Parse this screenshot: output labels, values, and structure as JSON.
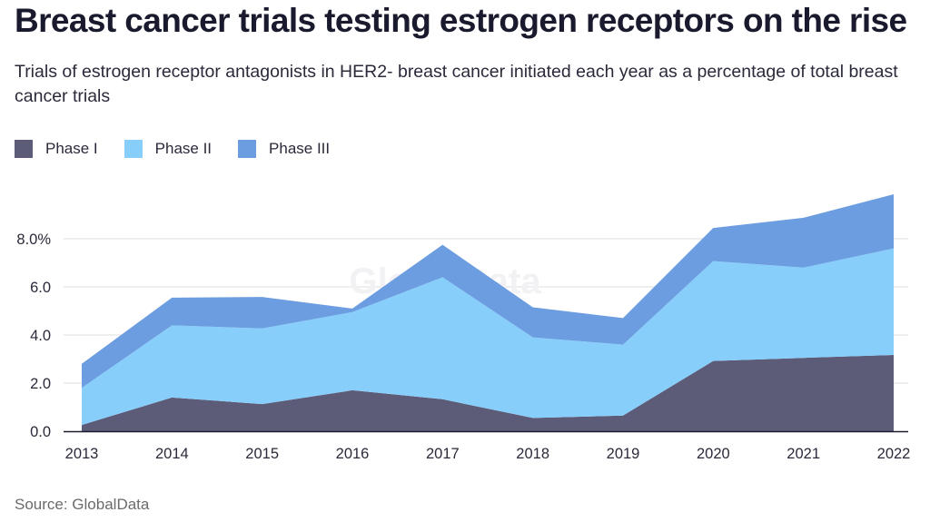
{
  "header": {
    "title": "Breast cancer trials testing estrogen receptors on the rise",
    "subtitle": "Trials of estrogen receptor antagonists in HER2- breast cancer initiated each year as a percentage of total breast cancer trials"
  },
  "footer": {
    "source": "Source: GlobalData"
  },
  "watermark": "GlobalData",
  "chart_data": {
    "type": "area",
    "stacked": true,
    "title": "Breast cancer trials testing estrogen receptors on the rise",
    "subtitle": "Trials of estrogen receptor antagonists in HER2- breast cancer initiated each year as a percentage of total breast cancer trials",
    "xlabel": "",
    "ylabel": "",
    "categories": [
      "2013",
      "2014",
      "2015",
      "2016",
      "2017",
      "2018",
      "2019",
      "2020",
      "2021",
      "2022"
    ],
    "series": [
      {
        "name": "Phase I",
        "color": "#5c5b78",
        "values": [
          0.26,
          1.4,
          1.13,
          1.7,
          1.33,
          0.55,
          0.65,
          2.92,
          3.05,
          3.17
        ]
      },
      {
        "name": "Phase II",
        "color": "#87cefa",
        "values": [
          1.54,
          3.0,
          3.14,
          3.25,
          5.07,
          3.35,
          2.95,
          4.15,
          3.75,
          4.43
        ]
      },
      {
        "name": "Phase III",
        "color": "#6c9de0",
        "values": [
          1.0,
          1.15,
          1.31,
          0.15,
          1.35,
          1.25,
          1.1,
          1.38,
          2.07,
          2.25
        ]
      }
    ],
    "ylim": [
      0,
      10
    ],
    "yticks": [
      0,
      2,
      4,
      6,
      8
    ],
    "ytick_labels": [
      "0.0",
      "2.0",
      "4.0",
      "6.0",
      "8.0%"
    ],
    "grid": true,
    "legend": "top-left",
    "source": "Source: GlobalData"
  }
}
